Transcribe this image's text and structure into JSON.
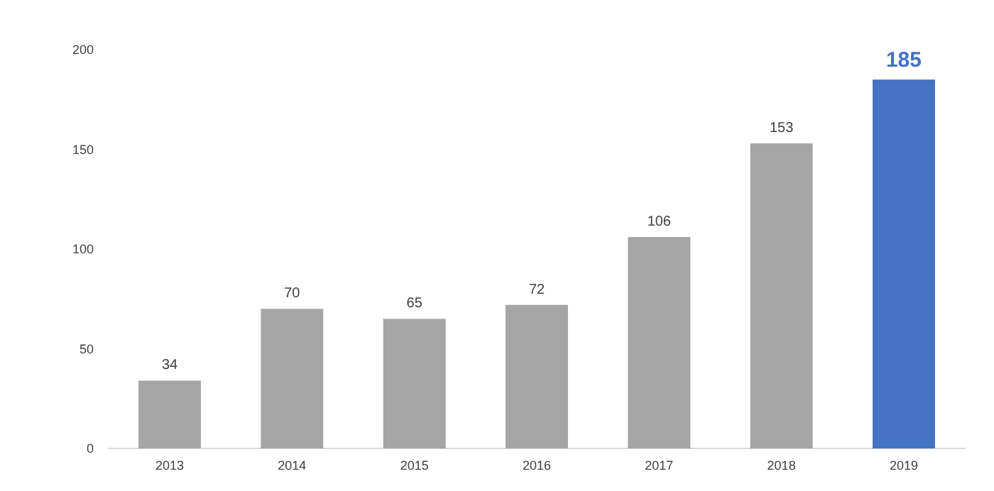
{
  "chart_data": {
    "type": "bar",
    "categories": [
      "2013",
      "2014",
      "2015",
      "2016",
      "2017",
      "2018",
      "2019"
    ],
    "values": [
      34,
      70,
      65,
      72,
      106,
      153,
      185
    ],
    "colors": [
      "#a5a5a5",
      "#a5a5a5",
      "#a5a5a5",
      "#a5a5a5",
      "#a5a5a5",
      "#a5a5a5",
      "#4472c4"
    ],
    "ylim": [
      0,
      200
    ],
    "yticks": [
      0,
      50,
      100,
      150,
      200
    ],
    "grid": false,
    "data_labels": true
  }
}
